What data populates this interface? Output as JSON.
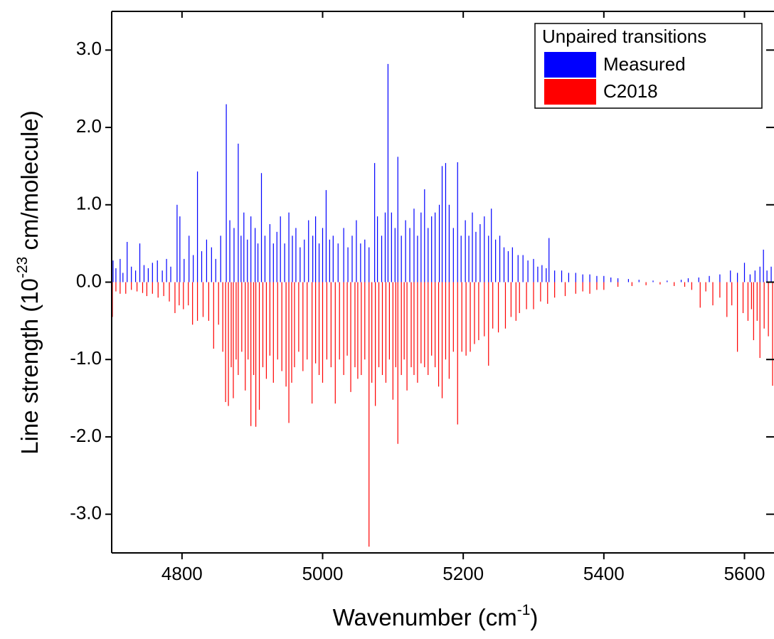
{
  "chart_data": {
    "type": "stick",
    "ylabel": {
      "text": "Line strength (10",
      "sup": "-23",
      "after": " cm/molecule)"
    },
    "xlabel": {
      "text": "Wavenumber (cm",
      "sup": "-1",
      "after": ")"
    },
    "legend_title": "Unpaired transitions",
    "legend_position": "upper right",
    "xlim": [
      4700,
      5642
    ],
    "xticks": [
      4800,
      5000,
      5200,
      5400,
      5600
    ],
    "ylim": [
      -3.5,
      3.5
    ],
    "yticks": [
      {
        "value": -3,
        "label": "-3.0"
      },
      {
        "value": -2,
        "label": "-2.0"
      },
      {
        "value": -1,
        "label": "-1.0"
      },
      {
        "value": 0,
        "label": "0.0"
      },
      {
        "value": 1,
        "label": "1.0"
      },
      {
        "value": 2,
        "label": "2.0"
      },
      {
        "value": 3,
        "label": "3.0"
      }
    ],
    "series": [
      {
        "name": "Measured",
        "color": "#0000ff",
        "x": [
          4702,
          4706,
          4712,
          4716,
          4722,
          4728,
          4734,
          4740,
          4746,
          4752,
          4758,
          4765,
          4772,
          4778,
          4784,
          4793,
          4797,
          4803,
          4810,
          4816,
          4822,
          4828,
          4835,
          4842,
          4848,
          4855,
          4863,
          4868,
          4874,
          4880,
          4884,
          4888,
          4893,
          4898,
          4904,
          4908,
          4913,
          4918,
          4925,
          4930,
          4935,
          4940,
          4946,
          4952,
          4957,
          4962,
          4968,
          4974,
          4980,
          4986,
          4990,
          4995,
          5000,
          5005,
          5010,
          5015,
          5022,
          5030,
          5036,
          5042,
          5048,
          5054,
          5060,
          5066,
          5074,
          5078,
          5084,
          5089,
          5093,
          5098,
          5103,
          5107,
          5112,
          5118,
          5124,
          5130,
          5135,
          5140,
          5145,
          5150,
          5155,
          5160,
          5166,
          5170,
          5175,
          5180,
          5186,
          5192,
          5197,
          5203,
          5208,
          5213,
          5218,
          5224,
          5230,
          5236,
          5240,
          5246,
          5252,
          5258,
          5264,
          5270,
          5278,
          5285,
          5292,
          5300,
          5306,
          5312,
          5318,
          5322,
          5330,
          5340,
          5350,
          5360,
          5370,
          5380,
          5390,
          5400,
          5410,
          5420,
          5435,
          5450,
          5470,
          5490,
          5510,
          5520,
          5535,
          5550,
          5565,
          5580,
          5590,
          5600,
          5608,
          5615,
          5622,
          5627,
          5632,
          5638
        ],
        "values": [
          0.28,
          0.18,
          0.3,
          0.12,
          0.52,
          0.2,
          0.15,
          0.5,
          0.22,
          0.18,
          0.25,
          0.28,
          0.15,
          0.3,
          0.2,
          1.0,
          0.85,
          0.3,
          0.6,
          0.35,
          1.43,
          0.4,
          0.55,
          0.45,
          0.3,
          0.6,
          2.3,
          0.8,
          0.7,
          1.79,
          0.6,
          0.9,
          0.55,
          0.85,
          0.7,
          0.5,
          1.41,
          0.6,
          0.75,
          0.5,
          0.65,
          0.85,
          0.5,
          0.9,
          0.6,
          0.7,
          0.45,
          0.55,
          0.8,
          0.6,
          0.85,
          0.5,
          0.7,
          1.19,
          0.55,
          0.6,
          0.5,
          0.7,
          0.45,
          0.6,
          0.8,
          0.5,
          0.55,
          0.45,
          1.54,
          0.85,
          0.6,
          0.9,
          2.82,
          0.9,
          0.7,
          1.62,
          0.6,
          0.8,
          0.7,
          0.95,
          0.6,
          0.9,
          1.2,
          0.7,
          0.85,
          0.9,
          1.0,
          1.5,
          1.54,
          1.0,
          0.7,
          1.55,
          0.6,
          0.8,
          0.6,
          0.9,
          0.65,
          0.75,
          0.85,
          0.6,
          0.95,
          0.55,
          0.6,
          0.45,
          0.4,
          0.45,
          0.35,
          0.35,
          0.28,
          0.3,
          0.2,
          0.22,
          0.18,
          0.57,
          0.15,
          0.15,
          0.12,
          0.12,
          0.1,
          0.1,
          0.08,
          0.08,
          0.06,
          0.05,
          0.04,
          0.03,
          0.02,
          0.02,
          0.03,
          0.05,
          0.06,
          0.08,
          0.1,
          0.15,
          0.12,
          0.25,
          0.1,
          0.15,
          0.2,
          0.42,
          0.15,
          0.2
        ]
      },
      {
        "name": "C2018",
        "color": "#ff0000",
        "x": [
          4701,
          4706,
          4712,
          4720,
          4728,
          4736,
          4744,
          4750,
          4758,
          4766,
          4774,
          4782,
          4790,
          4796,
          4802,
          4809,
          4815,
          4822,
          4830,
          4838,
          4845,
          4852,
          4858,
          4862,
          4866,
          4870,
          4873,
          4877,
          4880,
          4885,
          4890,
          4894,
          4898,
          4902,
          4905,
          4910,
          4915,
          4920,
          4925,
          4930,
          4936,
          4942,
          4948,
          4952,
          4956,
          4960,
          4966,
          4972,
          4978,
          4985,
          4990,
          4995,
          5000,
          5006,
          5012,
          5018,
          5024,
          5030,
          5035,
          5040,
          5046,
          5050,
          5055,
          5060,
          5066,
          5070,
          5075,
          5080,
          5085,
          5090,
          5095,
          5100,
          5104,
          5107,
          5112,
          5116,
          5120,
          5126,
          5130,
          5135,
          5140,
          5145,
          5150,
          5155,
          5160,
          5165,
          5170,
          5175,
          5180,
          5186,
          5192,
          5198,
          5204,
          5210,
          5216,
          5222,
          5230,
          5236,
          5242,
          5250,
          5260,
          5268,
          5275,
          5280,
          5290,
          5300,
          5310,
          5320,
          5330,
          5345,
          5360,
          5370,
          5380,
          5390,
          5400,
          5420,
          5440,
          5460,
          5480,
          5500,
          5515,
          5525,
          5537,
          5545,
          5555,
          5565,
          5575,
          5582,
          5590,
          5598,
          5605,
          5610,
          5613,
          5618,
          5622,
          5628,
          5634,
          5640
        ],
        "values": [
          -0.45,
          -0.12,
          -0.15,
          -0.15,
          -0.1,
          -0.12,
          -0.14,
          -0.18,
          -0.15,
          -0.2,
          -0.18,
          -0.25,
          -0.4,
          -0.3,
          -0.35,
          -0.3,
          -0.55,
          -0.5,
          -0.45,
          -0.5,
          -0.86,
          -0.55,
          -0.9,
          -1.55,
          -1.6,
          -1.1,
          -1.5,
          -1.0,
          -1.2,
          -0.9,
          -1.4,
          -1.0,
          -1.86,
          -1.2,
          -1.87,
          -1.65,
          -1.1,
          -1.25,
          -0.95,
          -1.3,
          -1.0,
          -1.15,
          -1.35,
          -1.82,
          -1.3,
          -1.1,
          -0.9,
          -1.15,
          -1.0,
          -1.57,
          -1.05,
          -1.2,
          -1.3,
          -1.0,
          -1.1,
          -1.57,
          -1.0,
          -1.2,
          -0.95,
          -1.42,
          -1.1,
          -1.25,
          -1.2,
          -1.0,
          -3.42,
          -1.3,
          -1.6,
          -1.1,
          -1.2,
          -1.3,
          -1.0,
          -1.52,
          -1.1,
          -2.09,
          -1.2,
          -1.0,
          -1.4,
          -1.1,
          -1.2,
          -1.3,
          -1.05,
          -1.1,
          -1.2,
          -0.95,
          -1.1,
          -1.35,
          -1.5,
          -1.0,
          -1.25,
          -0.9,
          -1.84,
          -0.9,
          -0.95,
          -0.9,
          -0.8,
          -0.75,
          -0.7,
          -1.08,
          -0.6,
          -0.65,
          -0.6,
          -0.45,
          -0.5,
          -0.4,
          -0.35,
          -0.35,
          -0.25,
          -0.28,
          -0.2,
          -0.18,
          -0.15,
          -0.12,
          -0.15,
          -0.1,
          -0.1,
          -0.06,
          -0.05,
          -0.04,
          -0.03,
          -0.05,
          -0.06,
          -0.1,
          -0.33,
          -0.12,
          -0.3,
          -0.2,
          -0.45,
          -0.3,
          -0.9,
          -0.4,
          -0.5,
          -0.35,
          -0.75,
          -0.5,
          -0.98,
          -0.6,
          -0.7,
          -1.34
        ]
      }
    ]
  }
}
